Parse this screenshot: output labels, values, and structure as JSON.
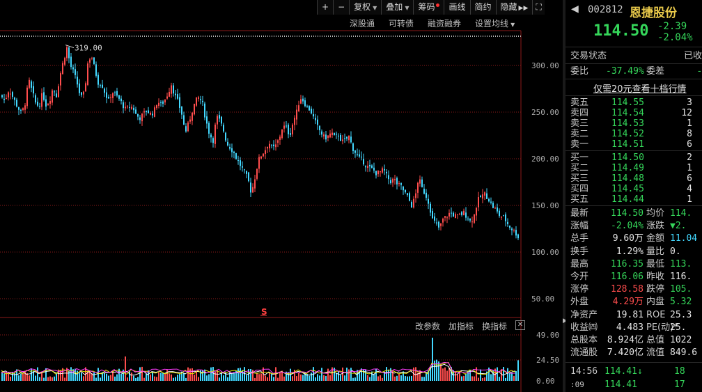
{
  "toolbar": {
    "plus": "+",
    "minus": "−",
    "fuquan": "复权",
    "diejia": "叠加",
    "chouma": "筹码",
    "huaxian": "画线",
    "jianyue": "简约",
    "yincang": "隐藏"
  },
  "subbar": {
    "shengutong": "深股通",
    "kezhuanzhai": "可转债",
    "rongzirongquan": "融资融券",
    "shezhi_junxian": "设置均线"
  },
  "indicator_bar": {
    "gai_canshu": "改参数",
    "jia_zhibiao": "加指标",
    "huan_zhibiao": "换指标",
    "close": "✕"
  },
  "colors": {
    "up": "#ff4d4d",
    "down": "#43d8ff",
    "green": "#35d65a",
    "grid": "#8b1a1a"
  },
  "chart_data": {
    "type": "candlestick",
    "price_axis": {
      "ticks": [
        "300.00",
        "250.00",
        "200.00",
        "150.00",
        "100.00",
        "50.00"
      ],
      "values": [
        300,
        250,
        200,
        150,
        100,
        50
      ]
    },
    "volume_axis": {
      "ticks": [
        "49.00",
        "24.50",
        "0.00"
      ],
      "values": [
        49,
        24.5,
        0
      ]
    },
    "max_label": "319.00",
    "max_value": 319.0,
    "s_marker": "S",
    "price_path": [
      [
        0,
        268
      ],
      [
        6,
        262
      ],
      [
        12,
        275
      ],
      [
        18,
        265
      ],
      [
        24,
        256
      ],
      [
        30,
        248
      ],
      [
        36,
        262
      ],
      [
        40,
        285
      ],
      [
        45,
        272
      ],
      [
        50,
        260
      ],
      [
        55,
        256
      ],
      [
        60,
        270
      ],
      [
        65,
        258
      ],
      [
        70,
        262
      ],
      [
        75,
        276
      ],
      [
        80,
        268
      ],
      [
        86,
        292
      ],
      [
        90,
        305
      ],
      [
        95,
        319
      ],
      [
        100,
        300
      ],
      [
        105,
        292
      ],
      [
        110,
        280
      ],
      [
        115,
        265
      ],
      [
        120,
        270
      ],
      [
        125,
        302
      ],
      [
        130,
        312
      ],
      [
        135,
        296
      ],
      [
        140,
        282
      ],
      [
        145,
        280
      ],
      [
        150,
        270
      ],
      [
        155,
        262
      ],
      [
        160,
        272
      ],
      [
        165,
        268
      ],
      [
        170,
        264
      ],
      [
        175,
        258
      ],
      [
        180,
        252
      ],
      [
        185,
        256
      ],
      [
        190,
        255
      ],
      [
        195,
        246
      ],
      [
        200,
        244
      ],
      [
        205,
        248
      ],
      [
        210,
        252
      ],
      [
        215,
        248
      ],
      [
        220,
        250
      ],
      [
        225,
        262
      ],
      [
        230,
        258
      ],
      [
        235,
        262
      ],
      [
        240,
        270
      ],
      [
        245,
        280
      ],
      [
        250,
        268
      ],
      [
        255,
        260
      ],
      [
        260,
        248
      ],
      [
        265,
        228
      ],
      [
        270,
        238
      ],
      [
        275,
        252
      ],
      [
        280,
        262
      ],
      [
        285,
        266
      ],
      [
        290,
        258
      ],
      [
        295,
        240
      ],
      [
        300,
        226
      ],
      [
        305,
        220
      ],
      [
        310,
        245
      ],
      [
        315,
        240
      ],
      [
        320,
        230
      ],
      [
        325,
        216
      ],
      [
        330,
        212
      ],
      [
        335,
        206
      ],
      [
        340,
        198
      ],
      [
        345,
        192
      ],
      [
        350,
        185
      ],
      [
        355,
        178
      ],
      [
        360,
        163
      ],
      [
        365,
        180
      ],
      [
        370,
        198
      ],
      [
        375,
        205
      ],
      [
        380,
        210
      ],
      [
        385,
        218
      ],
      [
        390,
        210
      ],
      [
        395,
        214
      ],
      [
        400,
        222
      ],
      [
        405,
        235
      ],
      [
        410,
        233
      ],
      [
        415,
        225
      ],
      [
        420,
        240
      ],
      [
        425,
        250
      ],
      [
        430,
        266
      ],
      [
        435,
        262
      ],
      [
        440,
        255
      ],
      [
        445,
        252
      ],
      [
        450,
        242
      ],
      [
        455,
        234
      ],
      [
        460,
        228
      ],
      [
        465,
        222
      ],
      [
        470,
        224
      ],
      [
        475,
        228
      ],
      [
        480,
        222
      ],
      [
        485,
        226
      ],
      [
        490,
        218
      ],
      [
        495,
        220
      ],
      [
        500,
        224
      ],
      [
        505,
        212
      ],
      [
        510,
        206
      ],
      [
        515,
        200
      ],
      [
        520,
        198
      ],
      [
        525,
        192
      ],
      [
        530,
        190
      ],
      [
        535,
        188
      ],
      [
        540,
        184
      ],
      [
        545,
        186
      ],
      [
        550,
        188
      ],
      [
        555,
        180
      ],
      [
        560,
        176
      ],
      [
        565,
        178
      ],
      [
        570,
        172
      ],
      [
        575,
        170
      ],
      [
        580,
        164
      ],
      [
        585,
        158
      ],
      [
        590,
        150
      ],
      [
        595,
        158
      ],
      [
        600,
        180
      ],
      [
        605,
        168
      ],
      [
        610,
        162
      ],
      [
        615,
        152
      ],
      [
        620,
        135
      ],
      [
        625,
        130
      ],
      [
        630,
        125
      ],
      [
        635,
        135
      ],
      [
        640,
        138
      ],
      [
        645,
        142
      ],
      [
        650,
        140
      ],
      [
        655,
        138
      ],
      [
        660,
        140
      ],
      [
        665,
        142
      ],
      [
        670,
        138
      ],
      [
        675,
        132
      ],
      [
        680,
        140
      ],
      [
        685,
        155
      ],
      [
        690,
        160
      ],
      [
        695,
        162
      ],
      [
        700,
        158
      ],
      [
        705,
        150
      ],
      [
        710,
        146
      ],
      [
        715,
        140
      ],
      [
        720,
        138
      ],
      [
        725,
        134
      ],
      [
        730,
        128
      ],
      [
        735,
        124
      ],
      [
        740,
        120
      ],
      [
        745,
        114
      ]
    ]
  },
  "stock": {
    "code": "002812",
    "name": "恩捷股份",
    "price": "114.50",
    "change": "-2.39",
    "change_pct": "-2.04%"
  },
  "status": {
    "label": "交易状态",
    "value": "已收"
  },
  "weibi": {
    "label": "委比",
    "value": "-37.49%",
    "label2": "委差",
    "value2": "-"
  },
  "promo": "仅需20元查看十档行情",
  "sell": [
    {
      "label": "卖五",
      "price": "114.55",
      "vol": "3"
    },
    {
      "label": "卖四",
      "price": "114.54",
      "vol": "12"
    },
    {
      "label": "卖三",
      "price": "114.53",
      "vol": "1"
    },
    {
      "label": "卖二",
      "price": "114.52",
      "vol": "8"
    },
    {
      "label": "卖一",
      "price": "114.51",
      "vol": "6"
    }
  ],
  "buy": [
    {
      "label": "买一",
      "price": "114.50",
      "vol": "2"
    },
    {
      "label": "买二",
      "price": "114.49",
      "vol": "1"
    },
    {
      "label": "买三",
      "price": "114.48",
      "vol": "6"
    },
    {
      "label": "买四",
      "price": "114.45",
      "vol": "4"
    },
    {
      "label": "买五",
      "price": "114.44",
      "vol": "1"
    }
  ],
  "stats": [
    {
      "l1": "最新",
      "v1": "114.50",
      "c1": "green",
      "l2": "均价",
      "v2": "114.",
      "c2": "green"
    },
    {
      "l1": "涨幅",
      "v1": "-2.04%",
      "c1": "green",
      "l2": "涨跌",
      "v2": "▼2.",
      "c2": "green"
    },
    {
      "l1": "总手",
      "v1": "9.60万",
      "c1": "white",
      "l2": "金额",
      "v2": "11.04",
      "c2": "cyan"
    },
    {
      "l1": "换手",
      "v1": "1.29%",
      "c1": "white",
      "l2": "量比",
      "v2": "0.",
      "c2": "white"
    },
    {
      "l1": "最高",
      "v1": "116.35",
      "c1": "green",
      "l2": "最低",
      "v2": "113.",
      "c2": "green"
    },
    {
      "l1": "今开",
      "v1": "116.06",
      "c1": "green",
      "l2": "昨收",
      "v2": "116.",
      "c2": "white"
    },
    {
      "l1": "涨停",
      "v1": "128.58",
      "c1": "red",
      "l2": "跌停",
      "v2": "105.",
      "c2": "green"
    },
    {
      "l1": "外盘",
      "v1": "4.29万",
      "c1": "red",
      "l2": "内盘",
      "v2": "5.32",
      "c2": "green"
    },
    {
      "l1": "净资产",
      "v1": "19.81",
      "c1": "white",
      "l2": "ROE",
      "v2": "25.3",
      "c2": "white"
    },
    {
      "l1": "收益㈣",
      "v1": "4.483",
      "c1": "white",
      "l2": "PE(动)*",
      "v2": "25.",
      "c2": "white"
    },
    {
      "l1": "总股本",
      "v1": "8.924亿",
      "c1": "white",
      "l2": "总值",
      "v2": "1022",
      "c2": "white"
    },
    {
      "l1": "流通股",
      "v1": "7.420亿",
      "c1": "white",
      "l2": "流值",
      "v2": "849.6",
      "c2": "white"
    }
  ],
  "ticks": [
    {
      "time": "14:56",
      "price": "114.41↓",
      "vol": "18"
    },
    {
      "time": ":09",
      "price": "114.41",
      "vol": "17"
    }
  ]
}
